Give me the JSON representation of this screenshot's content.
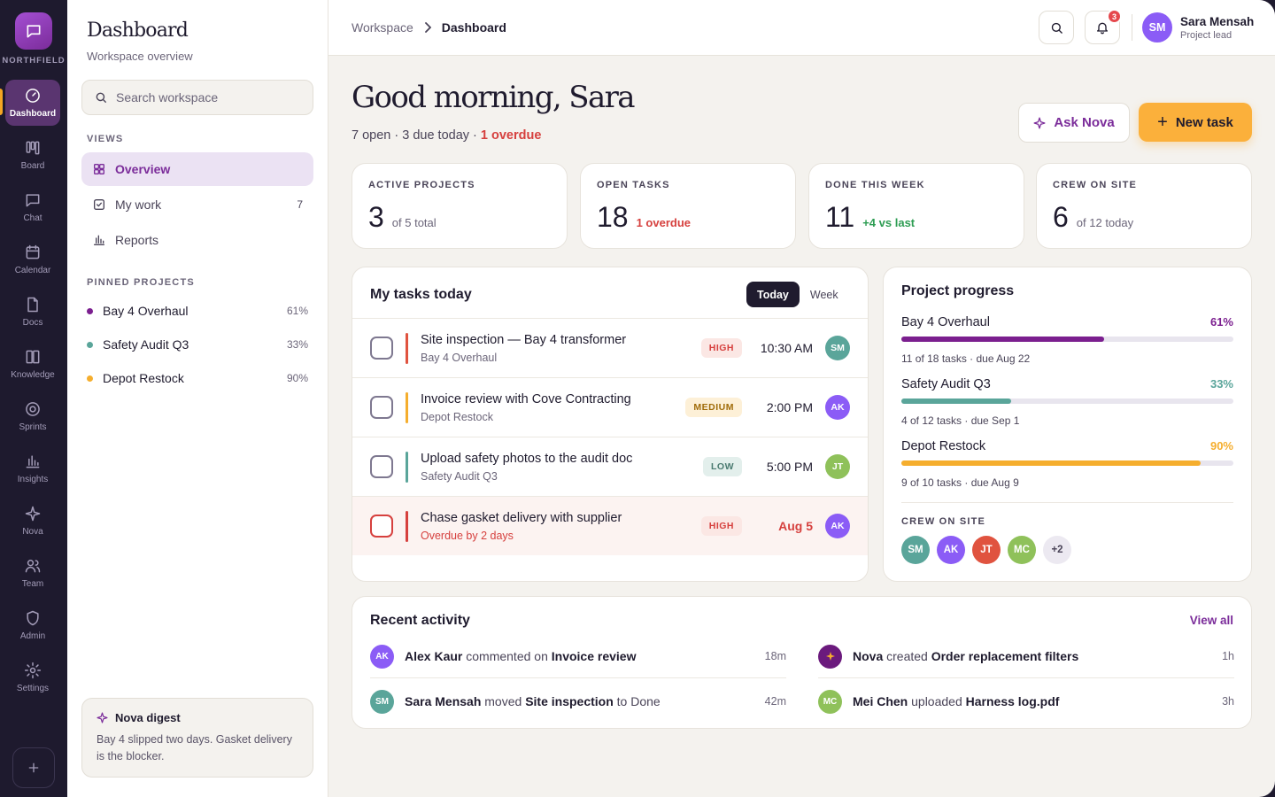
{
  "brand": {
    "name": "NORTHFIELD"
  },
  "rail": [
    {
      "key": "dashboard",
      "label": "Dashboard",
      "icon": "gauge-icon",
      "active": true
    },
    {
      "key": "board",
      "label": "Board",
      "icon": "board-icon"
    },
    {
      "key": "chat",
      "label": "Chat",
      "icon": "chat-icon"
    },
    {
      "key": "calendar",
      "label": "Calendar",
      "icon": "calendar-icon"
    },
    {
      "key": "docs",
      "label": "Docs",
      "icon": "document-icon"
    },
    {
      "key": "knowledge",
      "label": "Knowledge",
      "icon": "book-icon"
    },
    {
      "key": "sprints",
      "label": "Sprints",
      "icon": "target-icon"
    },
    {
      "key": "insights",
      "label": "Insights",
      "icon": "bar-chart-icon"
    },
    {
      "key": "nova",
      "label": "Nova",
      "icon": "sparkle-icon"
    },
    {
      "key": "team",
      "label": "Team",
      "icon": "team-icon"
    },
    {
      "key": "admin",
      "label": "Admin",
      "icon": "shield-icon"
    },
    {
      "key": "settings",
      "label": "Settings",
      "icon": "gear-icon"
    }
  ],
  "sidebar": {
    "title": "Dashboard",
    "subtitle": "Workspace overview",
    "search_placeholder": "Search workspace",
    "views_label": "VIEWS",
    "views": [
      {
        "label": "Overview",
        "icon": "grid-icon",
        "active": true,
        "count": ""
      },
      {
        "label": "My work",
        "icon": "checkbox-icon",
        "count": "7"
      },
      {
        "label": "Reports",
        "icon": "bar-chart-icon",
        "count": ""
      }
    ],
    "pinned_label": "PINNED PROJECTS",
    "pinned": [
      {
        "name": "Bay 4 Overhaul",
        "pct": "61%",
        "color": "#7b1f8f"
      },
      {
        "name": "Safety Audit Q3",
        "pct": "33%",
        "color": "#5aa59a"
      },
      {
        "name": "Depot Restock",
        "pct": "90%",
        "color": "#f5ae2e"
      }
    ],
    "digest": {
      "title": "Nova digest",
      "body": "Bay 4 slipped two days. Gasket delivery is the blocker."
    }
  },
  "header": {
    "crumb_root": "Workspace",
    "crumb_current": "Dashboard",
    "notifications": "3",
    "user": {
      "initials": "SM",
      "name": "Sara Mensah",
      "role": "Project lead"
    }
  },
  "greeting": {
    "title": "Good morning, Sara",
    "summary": "7 open · 3 due today · ",
    "overdue": "1 overdue"
  },
  "actions": {
    "ask": "Ask Nova",
    "new_task": "New task"
  },
  "stats": [
    {
      "label": "ACTIVE PROJECTS",
      "value": "3",
      "sub": "of 5 total",
      "tone": ""
    },
    {
      "label": "OPEN TASKS",
      "value": "18",
      "sub": "1 overdue",
      "tone": "red"
    },
    {
      "label": "DONE THIS WEEK",
      "value": "11",
      "sub": "+4 vs last",
      "tone": "green"
    },
    {
      "label": "CREW ON SITE",
      "value": "6",
      "sub": "of 12 today",
      "tone": ""
    }
  ],
  "tasks": {
    "title": "My tasks today",
    "toggle": [
      "Today",
      "Week"
    ],
    "items": [
      {
        "title": "Site inspection — Bay 4 transformer",
        "sub": "Bay 4 Overhaul",
        "priority": "HIGH",
        "prio_class": "high",
        "time": "10:30 AM",
        "avatar": "SM",
        "avatar_color": "#5aa59a",
        "bar_color": "#e0533f",
        "overdue": false
      },
      {
        "title": "Invoice review with Cove Contracting",
        "sub": "Depot Restock",
        "priority": "MEDIUM",
        "prio_class": "medium",
        "time": "2:00 PM",
        "avatar": "AK",
        "avatar_color": "#8b5cf6",
        "bar_color": "#f5ae2e",
        "overdue": false
      },
      {
        "title": "Upload safety photos to the audit doc",
        "sub": "Safety Audit Q3",
        "priority": "LOW",
        "prio_class": "low",
        "time": "5:00 PM",
        "avatar": "JT",
        "avatar_color": "#8fc15a",
        "bar_color": "#5aa59a",
        "overdue": false
      },
      {
        "title": "Chase gasket delivery with supplier",
        "sub": "Overdue by 2 days",
        "priority": "HIGH",
        "prio_class": "high",
        "time": "Aug 5",
        "avatar": "AK",
        "avatar_color": "#8b5cf6",
        "bar_color": "#d6403e",
        "overdue": true
      }
    ]
  },
  "progress": {
    "title": "Project progress",
    "projects": [
      {
        "name": "Bay 4 Overhaul",
        "pct": "61%",
        "value": 0.61,
        "color": "#7b1f8f",
        "sub": "11 of 18 tasks · due Aug 22"
      },
      {
        "name": "Safety Audit Q3",
        "pct": "33%",
        "value": 0.33,
        "color": "#5aa59a",
        "sub": "4 of 12 tasks · due Sep 1"
      },
      {
        "name": "Depot Restock",
        "pct": "90%",
        "value": 0.9,
        "color": "#f5ae2e",
        "sub": "9 of 10 tasks · due Aug 9"
      }
    ],
    "crew_label": "CREW ON SITE",
    "crew": [
      {
        "initials": "SM",
        "color": "#5aa59a"
      },
      {
        "initials": "AK",
        "color": "#8b5cf6"
      },
      {
        "initials": "JT",
        "color": "#e0533f"
      },
      {
        "initials": "MC",
        "color": "#8fc15a"
      },
      {
        "initials": "+2",
        "color": "#ece9f1"
      }
    ]
  },
  "activity": {
    "title": "Recent activity",
    "view_all": "View all",
    "items": [
      {
        "avatar": "AK",
        "color": "#8b5cf6",
        "actor": "Alex Kaur",
        "verb": "commented on",
        "object": "Invoice review",
        "tail": "",
        "ago": "18m"
      },
      {
        "avatar": "SM",
        "color": "#5aa59a",
        "actor": "Sara Mensah",
        "verb": "moved",
        "object": "Site inspection",
        "tail": "to Done",
        "ago": "42m"
      },
      {
        "avatar": "nova",
        "color": "#6b1a7d",
        "actor": "Nova",
        "verb": "created",
        "object": "Order replacement filters",
        "tail": "",
        "ago": "1h"
      },
      {
        "avatar": "MC",
        "color": "#8fc15a",
        "actor": "Mei Chen",
        "verb": "uploaded",
        "object": "Harness log.pdf",
        "tail": "",
        "ago": "3h"
      }
    ]
  }
}
